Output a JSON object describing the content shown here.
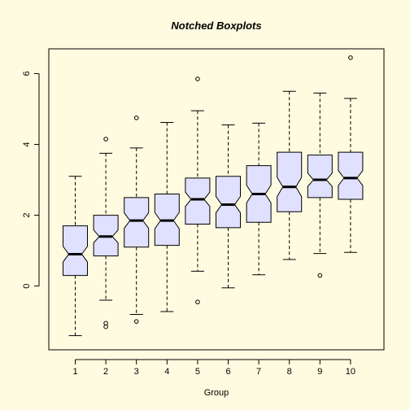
{
  "colors": {
    "background": "#fffbe0",
    "box_fill": "#e0e0ff",
    "stroke": "#000000"
  },
  "chart_data": {
    "type": "boxplot",
    "notched": true,
    "title": "Notched Boxplots",
    "xlabel": "Group",
    "ylabel": "",
    "categories": [
      "1",
      "2",
      "3",
      "4",
      "5",
      "6",
      "7",
      "8",
      "9",
      "10"
    ],
    "ylim": [
      -1.8,
      6.7
    ],
    "yticks": [
      0,
      2,
      4,
      6
    ],
    "grid": false,
    "legend": "none",
    "boxes": [
      {
        "group": "1",
        "lower_whisker": -1.4,
        "q1": 0.3,
        "median": 0.9,
        "q3": 1.7,
        "upper_whisker": 3.1,
        "notch_low": 0.68,
        "notch_high": 1.12,
        "outliers": []
      },
      {
        "group": "2",
        "lower_whisker": -0.4,
        "q1": 0.85,
        "median": 1.4,
        "q3": 2.0,
        "upper_whisker": 3.75,
        "notch_low": 1.22,
        "notch_high": 1.58,
        "outliers": [
          4.15,
          -1.05,
          -1.15
        ]
      },
      {
        "group": "3",
        "lower_whisker": -0.8,
        "q1": 1.1,
        "median": 1.85,
        "q3": 2.5,
        "upper_whisker": 3.9,
        "notch_low": 1.63,
        "notch_high": 2.07,
        "outliers": [
          4.75,
          -1.0
        ]
      },
      {
        "group": "4",
        "lower_whisker": -0.72,
        "q1": 1.15,
        "median": 1.85,
        "q3": 2.6,
        "upper_whisker": 4.62,
        "notch_low": 1.62,
        "notch_high": 2.08,
        "outliers": []
      },
      {
        "group": "5",
        "lower_whisker": 0.42,
        "q1": 1.75,
        "median": 2.45,
        "q3": 3.05,
        "upper_whisker": 4.95,
        "notch_low": 2.25,
        "notch_high": 2.65,
        "outliers": [
          5.85,
          -0.45
        ]
      },
      {
        "group": "6",
        "lower_whisker": -0.05,
        "q1": 1.65,
        "median": 2.3,
        "q3": 3.1,
        "upper_whisker": 4.55,
        "notch_low": 2.07,
        "notch_high": 2.53,
        "outliers": []
      },
      {
        "group": "7",
        "lower_whisker": 0.32,
        "q1": 1.8,
        "median": 2.6,
        "q3": 3.4,
        "upper_whisker": 4.6,
        "notch_low": 2.35,
        "notch_high": 2.85,
        "outliers": []
      },
      {
        "group": "8",
        "lower_whisker": 0.75,
        "q1": 2.1,
        "median": 2.8,
        "q3": 3.78,
        "upper_whisker": 5.5,
        "notch_low": 2.53,
        "notch_high": 3.07,
        "outliers": []
      },
      {
        "group": "9",
        "lower_whisker": 0.92,
        "q1": 2.5,
        "median": 3.0,
        "q3": 3.7,
        "upper_whisker": 5.45,
        "notch_low": 2.81,
        "notch_high": 3.19,
        "outliers": [
          0.3
        ]
      },
      {
        "group": "10",
        "lower_whisker": 0.95,
        "q1": 2.45,
        "median": 3.05,
        "q3": 3.78,
        "upper_whisker": 5.3,
        "notch_low": 2.84,
        "notch_high": 3.26,
        "outliers": [
          6.45
        ]
      }
    ]
  }
}
